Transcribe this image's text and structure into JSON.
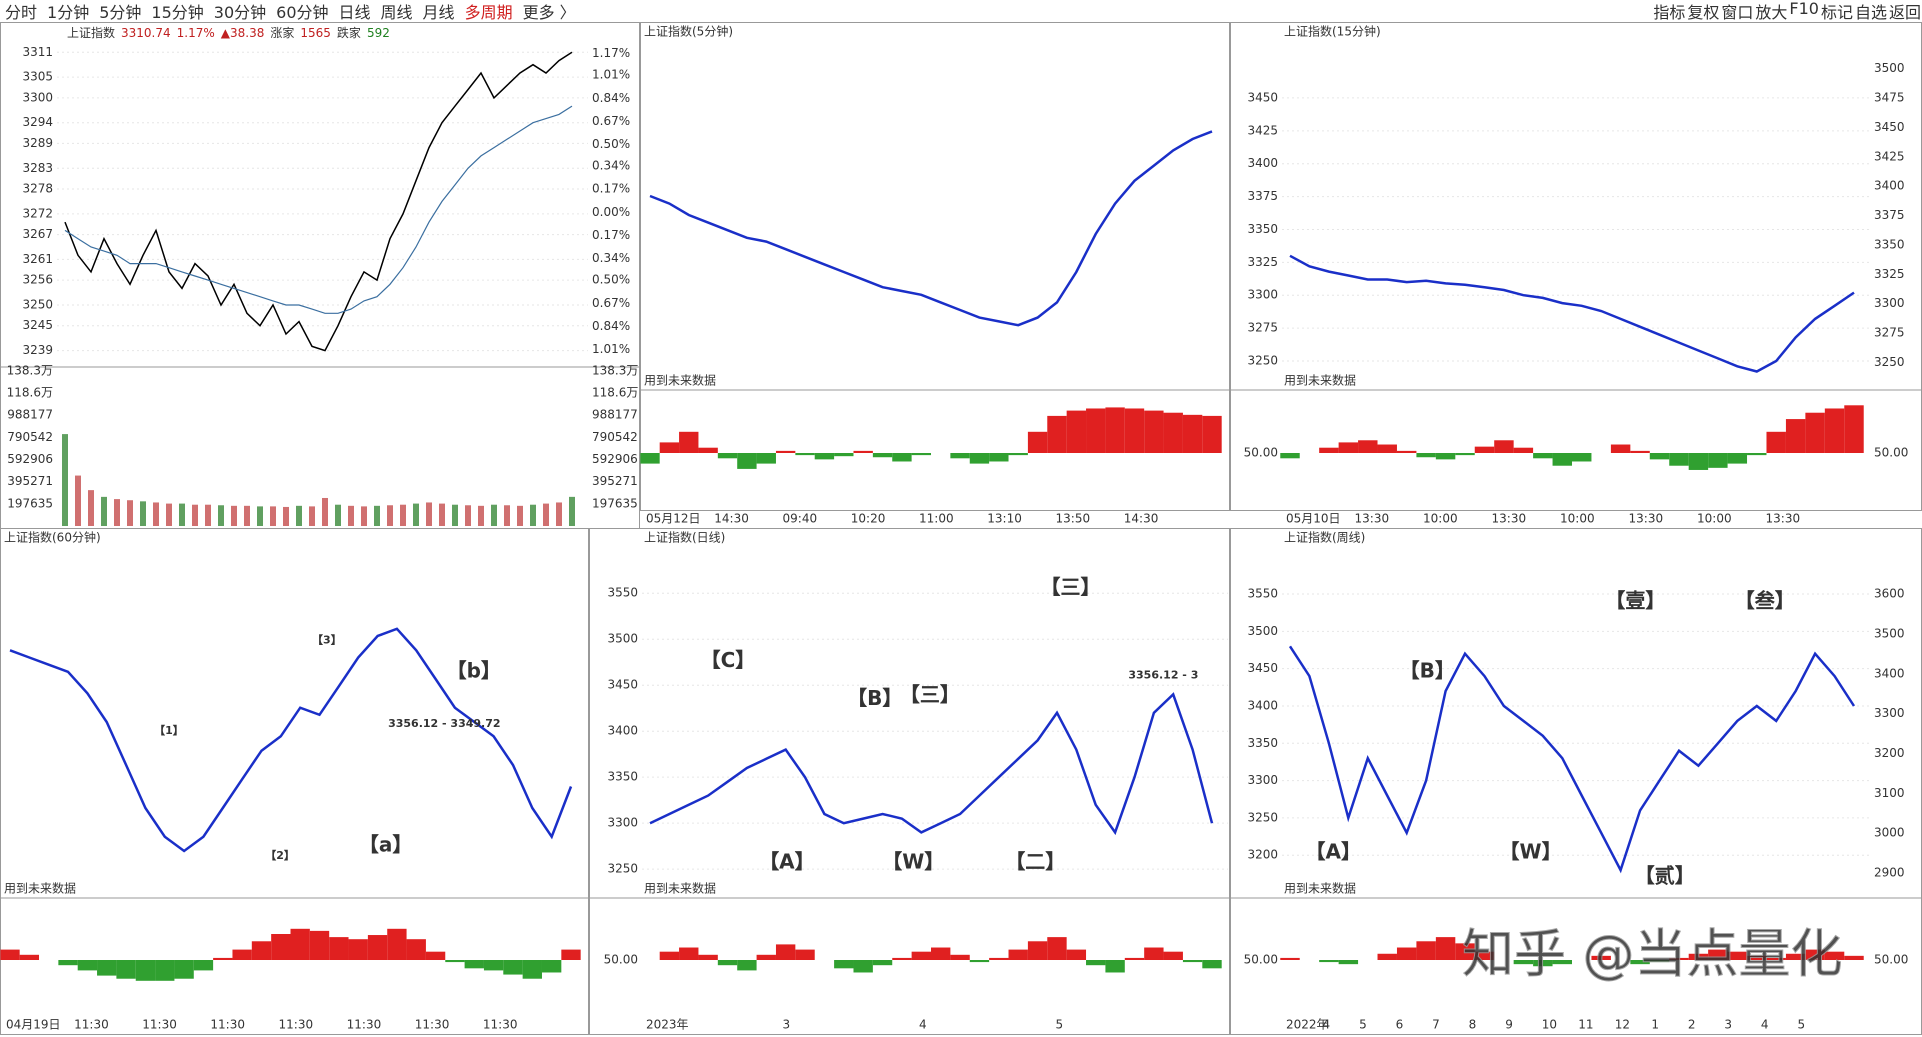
{
  "toolbar": {
    "periods": [
      "分时",
      "1分钟",
      "5分钟",
      "15分钟",
      "30分钟",
      "60分钟",
      "日线",
      "周线",
      "月线",
      "多周期",
      "更多 〉"
    ],
    "right": [
      "指标",
      "复权",
      "窗口",
      "放大",
      "F10",
      "标记",
      "自选",
      "返回"
    ]
  },
  "panels": [
    {
      "type": "line",
      "title": "上证指数",
      "price": "3310.74",
      "change": "1.17%",
      "delta": "▲38.38",
      "up_label": "涨家",
      "up": 1565,
      "down_label": "跌家",
      "down": 592,
      "ylim": [
        3236,
        3313
      ],
      "yticks": [
        3311,
        3305,
        3300,
        3294,
        3289,
        3283,
        3278,
        3272,
        3267,
        3261,
        3256,
        3250,
        3245,
        3239
      ],
      "y2lim": [
        -1.11,
        1.24
      ],
      "y2ticks": [
        {
          "value": 1.17,
          "label": "1.17%"
        },
        {
          "value": 1.01,
          "label": "1.01%"
        },
        {
          "value": 0.84,
          "label": "0.84%"
        },
        {
          "value": 0.67,
          "label": "0.67%"
        },
        {
          "value": 0.5,
          "label": "0.50%"
        },
        {
          "value": 0.34,
          "label": "0.34%"
        },
        {
          "value": 0.17,
          "label": "0.17%"
        },
        {
          "value": 0,
          "label": "0.00%"
        },
        {
          "value": -0.17,
          "label": "0.17%"
        },
        {
          "value": -0.34,
          "label": "0.34%"
        },
        {
          "value": -0.5,
          "label": "0.50%"
        },
        {
          "value": -0.67,
          "label": "0.67%"
        },
        {
          "value": -0.84,
          "label": "0.84%"
        },
        {
          "value": -1.01,
          "label": "1.01%"
        }
      ],
      "color": "#000000",
      "values": [
        3270,
        3262,
        3258,
        3266,
        3260,
        3255,
        3262,
        3268,
        3258,
        3254,
        3260,
        3257,
        3250,
        3255,
        3248,
        3245,
        3250,
        3243,
        3246,
        3240,
        3239,
        3245,
        3252,
        3258,
        3256,
        3266,
        3272,
        3280,
        3288,
        3294,
        3298,
        3302,
        3306,
        3300,
        3303,
        3306,
        3308,
        3306,
        3309,
        3311
      ],
      "avg_color": "#3b6fa0",
      "avg": [
        3268,
        3266,
        3264,
        3263,
        3262,
        3260,
        3260,
        3260,
        3259,
        3258,
        3257,
        3256,
        3255,
        3254,
        3253,
        3252,
        3251,
        3250,
        3250,
        3249,
        3248,
        3248,
        3249,
        3251,
        3252,
        3255,
        3259,
        3264,
        3270,
        3275,
        3279,
        3283,
        3286,
        3288,
        3290,
        3292,
        3294,
        3295,
        3296,
        3298
      ],
      "vlim": [
        0,
        1383000
      ],
      "vticks": [
        {
          "value": 1383000,
          "label": "138.3万"
        },
        {
          "value": 1186000,
          "label": "118.6万"
        },
        988177,
        790542,
        592906,
        395271,
        197635
      ],
      "volume": [
        820000,
        450000,
        320000,
        260000,
        240000,
        230000,
        220000,
        210000,
        200000,
        200000,
        190000,
        190000,
        185000,
        180000,
        180000,
        175000,
        175000,
        170000,
        180000,
        175000,
        250000,
        190000,
        180000,
        175000,
        180000,
        185000,
        190000,
        200000,
        210000,
        200000,
        190000,
        185000,
        180000,
        190000,
        185000,
        180000,
        190000,
        200000,
        210000,
        260000
      ]
    },
    {
      "type": "line",
      "title": "上证指数(5分钟)",
      "note": "用到未来数据",
      "color": "#1a2fc8",
      "ylim": [
        3240,
        3330
      ],
      "values": [
        3290,
        3288,
        3285,
        3283,
        3281,
        3279,
        3278,
        3276,
        3274,
        3272,
        3270,
        3268,
        3266,
        3265,
        3264,
        3262,
        3260,
        3258,
        3257,
        3256,
        3258,
        3262,
        3270,
        3280,
        3288,
        3294,
        3298,
        3302,
        3305,
        3307
      ],
      "indicator": [
        40,
        60,
        70,
        55,
        45,
        35,
        40,
        52,
        48,
        44,
        47,
        52,
        46,
        42,
        48,
        50,
        45,
        40,
        42,
        48,
        70,
        85,
        90,
        92,
        93,
        92,
        90,
        88,
        86,
        85
      ],
      "ind_lim": [
        0,
        100
      ],
      "xlabels": [
        "05月12日",
        "14:30",
        "09:40",
        "10:20",
        "11:00",
        "13:10",
        "13:50",
        "14:30"
      ]
    },
    {
      "type": "line",
      "title": "上证指数(15分钟)",
      "note": "用到未来数据",
      "color": "#1a2fc8",
      "ylim": [
        3231,
        3491
      ],
      "yticks": [
        3450,
        3425,
        3400,
        3375,
        3350,
        3325,
        3300,
        3275,
        3250
      ],
      "y2lim": [
        3230,
        3521
      ],
      "y2ticks": [
        3500,
        3475,
        3450,
        3425,
        3400,
        3375,
        3350,
        3325,
        3300,
        3275,
        3250
      ],
      "values": [
        3330,
        3322,
        3318,
        3315,
        3312,
        3312,
        3310,
        3311,
        3309,
        3308,
        3306,
        3304,
        3300,
        3298,
        3294,
        3292,
        3288,
        3282,
        3276,
        3270,
        3264,
        3258,
        3252,
        3246,
        3242,
        3250,
        3268,
        3282,
        3292,
        3302
      ],
      "indicator": [
        45,
        50,
        55,
        60,
        62,
        58,
        52,
        46,
        44,
        48,
        56,
        62,
        55,
        45,
        38,
        42,
        50,
        58,
        52,
        44,
        38,
        34,
        36,
        40,
        48,
        70,
        82,
        88,
        92,
        95
      ],
      "ind_lim": [
        0,
        100
      ],
      "ind_ticks": [
        {
          "value": 50,
          "label": "50.00"
        }
      ],
      "xlabels": [
        "05月10日",
        "13:30",
        "10:00",
        "13:30",
        "10:00",
        "13:30",
        "10:00",
        "13:30"
      ]
    },
    {
      "type": "line",
      "title": "上证指数(60分钟)",
      "note": "用到未来数据",
      "color": "#1a2fc8",
      "ylim": [
        3230,
        3470
      ],
      "values": [
        3400,
        3395,
        3390,
        3385,
        3370,
        3350,
        3320,
        3290,
        3270,
        3260,
        3270,
        3290,
        3310,
        3330,
        3340,
        3360,
        3355,
        3375,
        3395,
        3410,
        3415,
        3400,
        3380,
        3360,
        3350,
        3340,
        3320,
        3290,
        3270,
        3305
      ],
      "indicator": [
        60,
        55,
        50,
        45,
        40,
        35,
        32,
        30,
        30,
        32,
        40,
        52,
        60,
        68,
        75,
        80,
        78,
        72,
        70,
        74,
        80,
        70,
        58,
        48,
        42,
        40,
        36,
        32,
        38,
        60
      ],
      "ind_lim": [
        0,
        100
      ],
      "annotations": [
        "【1】",
        "【2】",
        "【a】",
        "【b】",
        "【3】",
        "3356.12 - 3349.72"
      ],
      "xlabels": [
        "04月19日",
        "11:30",
        "11:30",
        "11:30",
        "11:30",
        "11:30",
        "11:30",
        "11:30"
      ]
    },
    {
      "type": "line",
      "title": "上证指数(日线)",
      "note": "用到未来数据",
      "color": "#1a2fc8",
      "ylim": [
        3223,
        3597
      ],
      "yticks": [
        3550,
        3500,
        3450,
        3400,
        3350,
        3300,
        3250
      ],
      "values": [
        3300,
        3310,
        3320,
        3330,
        3345,
        3360,
        3370,
        3380,
        3350,
        3310,
        3300,
        3305,
        3310,
        3305,
        3290,
        3300,
        3310,
        3330,
        3350,
        3370,
        3390,
        3420,
        3380,
        3320,
        3290,
        3350,
        3420,
        3440,
        3380,
        3300
      ],
      "indicator": [
        50,
        58,
        62,
        55,
        45,
        40,
        55,
        65,
        60,
        50,
        42,
        38,
        45,
        52,
        58,
        62,
        55,
        48,
        52,
        60,
        68,
        72,
        60,
        45,
        38,
        52,
        62,
        58,
        48,
        42
      ],
      "ind_lim": [
        0,
        100
      ],
      "ind_ticks": [
        {
          "value": 50,
          "label": "50.00"
        }
      ],
      "annotations": [
        "【C】",
        "【B】",
        "【三】",
        "【A】",
        "【W】",
        "【二】",
        "【三】",
        "3356.12 - 3"
      ],
      "xlabels": [
        "2023年",
        "3",
        "4",
        "5"
      ]
    },
    {
      "type": "line",
      "title": "上证指数(周线)",
      "note": "用到未来数据",
      "color": "#1a2fc8",
      "ylim": [
        3148,
        3609
      ],
      "yticks": [
        3550,
        3500,
        3450,
        3400,
        3350,
        3300,
        3250,
        3200
      ],
      "y2lim": [
        2847,
        3711
      ],
      "y2ticks": [
        3600,
        3500,
        3400,
        3300,
        3200,
        3100,
        3000,
        2900
      ],
      "values": [
        3480,
        3440,
        3350,
        3250,
        3330,
        3280,
        3230,
        3300,
        3420,
        3470,
        3440,
        3400,
        3380,
        3360,
        3330,
        3280,
        3230,
        3180,
        3260,
        3300,
        3340,
        3320,
        3350,
        3380,
        3400,
        3380,
        3420,
        3470,
        3440,
        3400
      ],
      "indicator": [
        52,
        50,
        48,
        46,
        50,
        56,
        62,
        68,
        72,
        66,
        58,
        50,
        46,
        44,
        46,
        50,
        54,
        50,
        46,
        48,
        52,
        56,
        60,
        58,
        54,
        52,
        56,
        60,
        58,
        54
      ],
      "ind_lim": [
        0,
        100
      ],
      "ind_ticks": [
        {
          "value": 50,
          "label": "50.00"
        }
      ],
      "annotations": [
        "【B】",
        "【A】",
        "【W】",
        "【壹】",
        "【叁】",
        "【贰】"
      ],
      "xlabels": [
        "2022年",
        "4",
        "5",
        "6",
        "7",
        "8",
        "9",
        "10",
        "11",
        "12",
        "1",
        "2",
        "3",
        "4",
        "5"
      ],
      "watermark": "知乎 @当点量化"
    }
  ]
}
